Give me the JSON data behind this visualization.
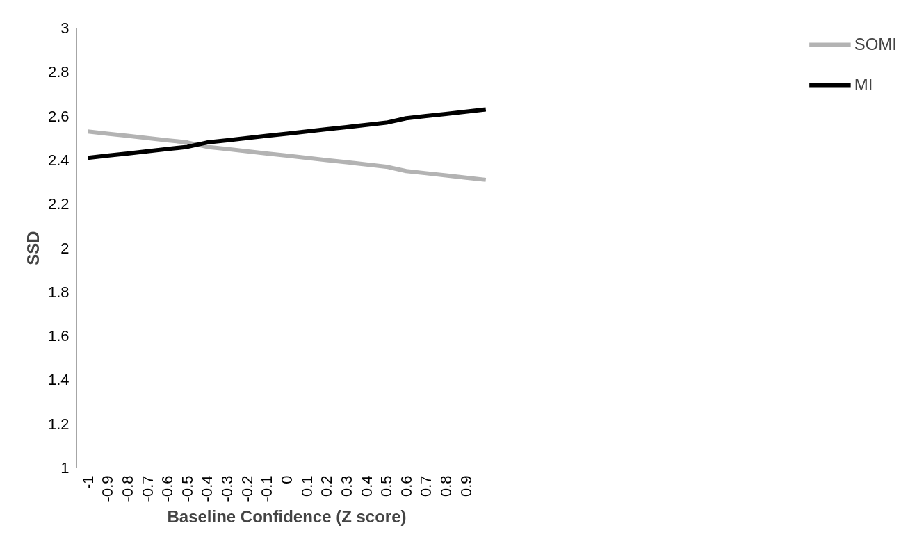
{
  "chart_data": {
    "type": "line",
    "xlabel": "Baseline Confidence (Z score)",
    "ylabel": "SSD",
    "categories": [
      "-1",
      "-0.9",
      "-0.8",
      "-0.7",
      "-0.6",
      "-0.5",
      "-0.4",
      "-0.3",
      "-0.2",
      "-0.1",
      "0",
      "0.1",
      "0.2",
      "0.3",
      "0.4",
      "0.5",
      "0.6",
      "0.7",
      "0.8",
      "0.9",
      null
    ],
    "series": [
      {
        "name": "SOMI",
        "color": "#b3b3b3",
        "values": [
          2.53,
          2.52,
          2.51,
          2.5,
          2.49,
          2.48,
          2.46,
          2.45,
          2.44,
          2.43,
          2.42,
          2.41,
          2.4,
          2.39,
          2.38,
          2.37,
          2.35,
          2.34,
          2.33,
          2.32,
          2.31
        ]
      },
      {
        "name": "MI",
        "color": "#000000",
        "values": [
          2.41,
          2.42,
          2.43,
          2.44,
          2.45,
          2.46,
          2.48,
          2.49,
          2.5,
          2.51,
          2.52,
          2.53,
          2.54,
          2.55,
          2.56,
          2.57,
          2.59,
          2.6,
          2.61,
          2.62,
          2.63
        ]
      }
    ],
    "ylim": [
      1,
      3
    ],
    "yticks": [
      1,
      1.2,
      1.4,
      1.6,
      1.8,
      2,
      2.2,
      2.4,
      2.6,
      2.8,
      3
    ],
    "grid": false,
    "legend": "right",
    "marker": "none",
    "line_style": "solid"
  }
}
